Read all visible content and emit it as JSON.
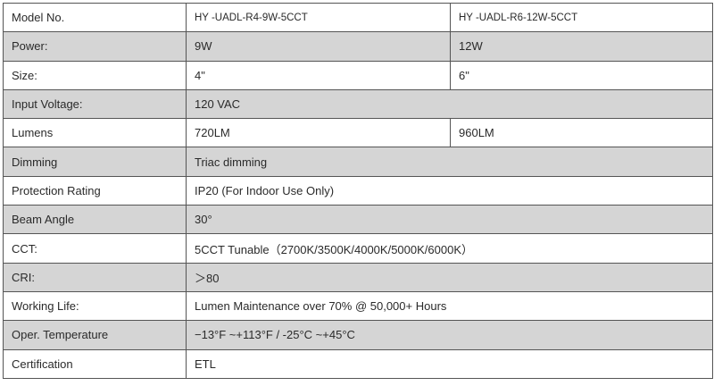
{
  "rows": [
    {
      "label": "Model No.",
      "values": [
        "HY -UADL-R4-9W-5CCT",
        "HY -UADL-R6-12W-5CCT"
      ],
      "shaded": false
    },
    {
      "label": "Power:",
      "values": [
        "9W",
        "12W"
      ],
      "shaded": true
    },
    {
      "label": "Size:",
      "values": [
        "4\"",
        "6\""
      ],
      "shaded": false
    },
    {
      "label": "Input Voltage:",
      "values": [
        "120 VAC"
      ],
      "shaded": true
    },
    {
      "label": "Lumens",
      "values": [
        "720LM",
        "960LM"
      ],
      "shaded": false
    },
    {
      "label": "Dimming",
      "values": [
        "Triac dimming"
      ],
      "shaded": true
    },
    {
      "label": "Protection Rating",
      "values": [
        "IP20 (For Indoor Use Only)"
      ],
      "shaded": false
    },
    {
      "label": "Beam Angle",
      "values": [
        "30°"
      ],
      "shaded": true
    },
    {
      "label": "CCT:",
      "values": [
        "5CCT  Tunable（2700K/3500K/4000K/5000K/6000K）"
      ],
      "shaded": false
    },
    {
      "label": "CRI:",
      "values": [
        "＞80"
      ],
      "shaded": true
    },
    {
      "label": "Working Life:",
      "values": [
        "Lumen Maintenance over 70% @ 50,000+ Hours"
      ],
      "shaded": false
    },
    {
      "label": "Oper. Temperature",
      "values": [
        "−13°F ~+113°F / -25°C ~+45°C"
      ],
      "shaded": true
    },
    {
      "label": "Certification",
      "values": [
        "ETL"
      ],
      "shaded": false
    }
  ],
  "colors": {
    "shaded_row": "#d5d5d5",
    "border": "#555555"
  }
}
